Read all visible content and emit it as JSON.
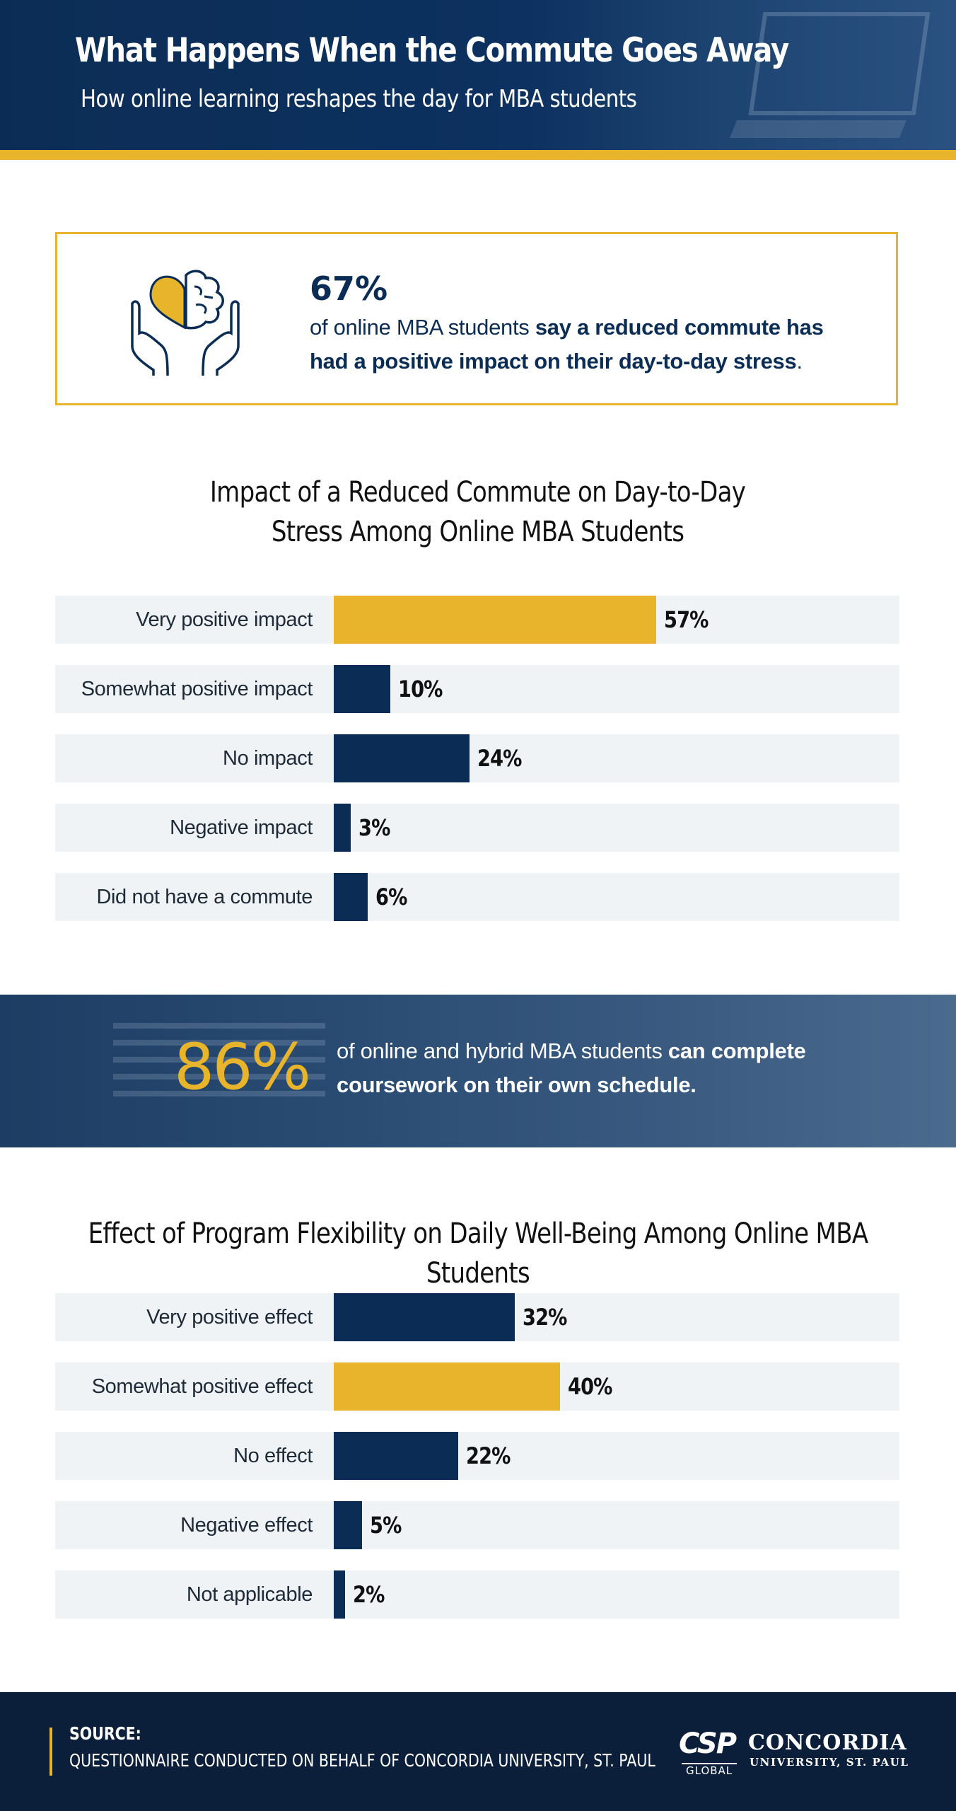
{
  "header": {
    "title": "What Happens When the Commute Goes Away",
    "subtitle": "How online learning reshapes the day for MBA students"
  },
  "stat1": {
    "value": "67%",
    "text_plain": "of online MBA students ",
    "text_bold": "say a reduced commute has had a positive impact on their day-to-day stress",
    "text_end": ".",
    "icon": "hands-heart-brain-icon"
  },
  "stat2": {
    "value": "86%",
    "text_plain": "of online and hybrid MBA students ",
    "text_bold": "can complete coursework on their own schedule."
  },
  "colors": {
    "navy": "#0b2d55",
    "gold": "#e8b42c",
    "row_bg": "#eff3f6"
  },
  "chart_data": [
    {
      "type": "bar",
      "orientation": "horizontal",
      "title": "Impact of a Reduced Commute on Day-to-Day\nStress Among Online MBA Students",
      "categories": [
        "Very positive impact",
        "Somewhat positive impact",
        "No impact",
        "Negative impact",
        "Did not have a commute"
      ],
      "values": [
        57,
        10,
        24,
        3,
        6
      ],
      "value_labels": [
        "57%",
        "10%",
        "24%",
        "3%",
        "6%"
      ],
      "highlight_index": 0,
      "xlim": [
        0,
        100
      ],
      "unit": "%",
      "grid": false,
      "legend": "none"
    },
    {
      "type": "bar",
      "orientation": "horizontal",
      "title": "Effect of Program Flexibility on Daily Well-Being Among Online MBA Students",
      "categories": [
        "Very positive effect",
        "Somewhat positive effect",
        "No effect",
        "Negative effect",
        "Not applicable"
      ],
      "values": [
        32,
        40,
        22,
        5,
        2
      ],
      "value_labels": [
        "32%",
        "40%",
        "22%",
        "5%",
        "2%"
      ],
      "highlight_index": 1,
      "xlim": [
        0,
        100
      ],
      "unit": "%",
      "grid": false,
      "legend": "none"
    }
  ],
  "footer": {
    "source_label": "SOURCE:",
    "source_text": "QUESTIONNAIRE CONDUCTED ON BEHALF OF CONCORDIA UNIVERSITY, ST. PAUL",
    "logo_csp": "CSP",
    "logo_global": "GLOBAL",
    "logo_name": "CONCORDIA",
    "logo_sub": "UNIVERSITY, ST. PAUL"
  }
}
